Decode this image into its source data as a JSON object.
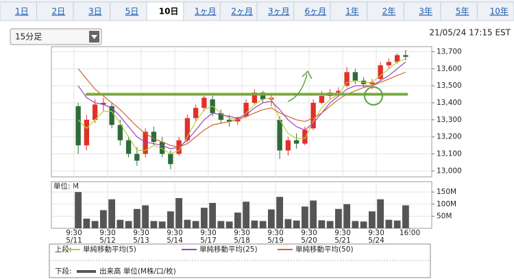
{
  "tabs": [
    "1日",
    "2日",
    "3日",
    "5日",
    "10日",
    "1ヶ月",
    "2ヶ月",
    "3ヶ月",
    "6ヶ月",
    "1年",
    "2年",
    "3年",
    "5年",
    "10年"
  ],
  "selected_tab": "10日",
  "interval": "15分足",
  "timestamp": "21/05/24 17:15 EST",
  "chart_data": {
    "type": "candlestick",
    "up_color": "#e0302a",
    "down_color": "#2e6b3a",
    "ylim": [
      12965,
      13730
    ],
    "yticks": [
      {
        "value": 13000,
        "label": "13,000"
      },
      {
        "value": 13100,
        "label": "13,100"
      },
      {
        "value": 13200,
        "label": "13,200"
      },
      {
        "value": 13300,
        "label": "13,300"
      },
      {
        "value": 13400,
        "label": "13,400"
      },
      {
        "value": 13500,
        "label": "13,500"
      },
      {
        "value": 13600,
        "label": "13,600"
      },
      {
        "value": 13700,
        "label": "13,700"
      }
    ],
    "xlabels": [
      {
        "time": "9:30",
        "date": "5/11"
      },
      {
        "time": "9:30",
        "date": "5/12"
      },
      {
        "time": "9:30",
        "date": "5/13"
      },
      {
        "time": "9:30",
        "date": "5/14"
      },
      {
        "time": "9:30",
        "date": "5/17"
      },
      {
        "time": "9:30",
        "date": "5/18"
      },
      {
        "time": "9:30",
        "date": "5/19"
      },
      {
        "time": "9:30",
        "date": "5/20"
      },
      {
        "time": "9:30",
        "date": "5/21"
      },
      {
        "time": "9:30",
        "date": "5/24"
      }
    ],
    "end_label": "16:00",
    "open": [
      13380,
      13150,
      13300,
      13390,
      13380,
      13270,
      13180,
      13100,
      13100,
      13230,
      13170,
      13100,
      13100,
      13180,
      13310,
      13370,
      13420,
      13340,
      13300,
      13290,
      13320,
      13400,
      13460,
      13420,
      13300,
      13120,
      13180,
      13160,
      13250,
      13400,
      13440,
      13460,
      13500,
      13580,
      13530,
      13510,
      13540,
      13620,
      13640,
      13680
    ],
    "high": [
      13400,
      13330,
      13420,
      13430,
      13400,
      13300,
      13200,
      13140,
      13250,
      13260,
      13200,
      13120,
      13200,
      13330,
      13390,
      13440,
      13440,
      13360,
      13330,
      13320,
      13420,
      13480,
      13470,
      13450,
      13320,
      13200,
      13220,
      13260,
      13420,
      13470,
      13480,
      13490,
      13610,
      13600,
      13550,
      13540,
      13640,
      13660,
      13690,
      13710
    ],
    "low": [
      13100,
      13120,
      13280,
      13350,
      13250,
      13150,
      13080,
      13030,
      13080,
      13150,
      13080,
      13010,
      13090,
      13170,
      13290,
      13350,
      13320,
      13280,
      13260,
      13270,
      13310,
      13390,
      13400,
      13380,
      13070,
      13090,
      13130,
      13150,
      13240,
      13390,
      13420,
      13440,
      13490,
      13510,
      13490,
      13480,
      13530,
      13600,
      13630,
      13650
    ],
    "close": [
      13150,
      13300,
      13390,
      13400,
      13270,
      13180,
      13100,
      13060,
      13230,
      13170,
      13100,
      13040,
      13180,
      13310,
      13370,
      13430,
      13340,
      13300,
      13290,
      13310,
      13400,
      13460,
      13420,
      13430,
      13120,
      13180,
      13160,
      13240,
      13400,
      13440,
      13460,
      13470,
      13580,
      13530,
      13510,
      13520,
      13620,
      13640,
      13680,
      13670
    ],
    "series": [
      {
        "name": "単純移動平均(5)",
        "color": "#b5d334",
        "values": [
          13300,
          13250,
          13300,
          13350,
          13350,
          13280,
          13200,
          13120,
          13120,
          13150,
          13130,
          13100,
          13120,
          13200,
          13290,
          13360,
          13380,
          13340,
          13310,
          13300,
          13340,
          13390,
          13420,
          13430,
          13300,
          13220,
          13190,
          13190,
          13290,
          13370,
          13420,
          13450,
          13520,
          13530,
          13520,
          13520,
          13560,
          13600,
          13640,
          13660
        ]
      },
      {
        "name": "単純移動平均(25)",
        "color": "#9b3fc4",
        "values": [
          13500,
          13430,
          13400,
          13390,
          13370,
          13320,
          13260,
          13200,
          13170,
          13160,
          13150,
          13130,
          13140,
          13180,
          13240,
          13300,
          13340,
          13330,
          13320,
          13310,
          13330,
          13370,
          13400,
          13410,
          13360,
          13300,
          13260,
          13240,
          13280,
          13340,
          13400,
          13440,
          13480,
          13500,
          13500,
          13500,
          13530,
          13560,
          13600,
          13640
        ]
      },
      {
        "name": "単純移動平均(50)",
        "color": "#d2642a",
        "values": [
          13600,
          13540,
          13480,
          13440,
          13400,
          13360,
          13310,
          13260,
          13220,
          13190,
          13170,
          13150,
          13140,
          13160,
          13200,
          13240,
          13270,
          13280,
          13290,
          13300,
          13320,
          13340,
          13360,
          13370,
          13340,
          13320,
          13300,
          13290,
          13310,
          13340,
          13380,
          13420,
          13450,
          13470,
          13490,
          13500,
          13520,
          13540,
          13560,
          13580
        ]
      }
    ],
    "annotation_line": 13450,
    "upper_label": "上段:",
    "lower_label": "下段:",
    "volume": {
      "unit_label": "単位: M",
      "name": "出来高 単位(M株/口/枚)",
      "color": "#555555",
      "ylim": [
        0,
        193
      ],
      "yticks": [
        {
          "value": 50,
          "label": "50M"
        },
        {
          "value": 100,
          "label": "100M"
        },
        {
          "value": 150,
          "label": "150M"
        }
      ],
      "values": [
        150,
        40,
        30,
        75,
        120,
        35,
        30,
        80,
        95,
        30,
        28,
        70,
        125,
        35,
        30,
        85,
        105,
        30,
        28,
        65,
        110,
        32,
        30,
        78,
        130,
        38,
        32,
        90,
        115,
        33,
        30,
        80,
        100,
        30,
        28,
        70,
        120,
        35,
        32,
        95
      ]
    }
  }
}
